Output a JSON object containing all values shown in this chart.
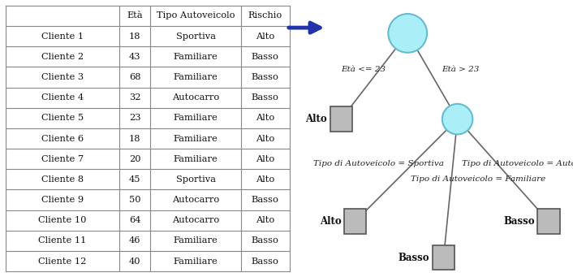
{
  "table_headers": [
    "",
    "Età",
    "Tipo Autoveicolo",
    "Rischio"
  ],
  "table_rows": [
    [
      "Cliente 1",
      "18",
      "Sportiva",
      "Alto"
    ],
    [
      "Cliente 2",
      "43",
      "Familiare",
      "Basso"
    ],
    [
      "Cliente 3",
      "68",
      "Familiare",
      "Basso"
    ],
    [
      "Cliente 4",
      "32",
      "Autocarro",
      "Basso"
    ],
    [
      "Cliente 5",
      "23",
      "Familiare",
      "Alto"
    ],
    [
      "Cliente 6",
      "18",
      "Familiare",
      "Alto"
    ],
    [
      "Cliente 7",
      "20",
      "Familiare",
      "Alto"
    ],
    [
      "Cliente 8",
      "45",
      "Sportiva",
      "Alto"
    ],
    [
      "Cliente 9",
      "50",
      "Autocarro",
      "Basso"
    ],
    [
      "Cliente 10",
      "64",
      "Autocarro",
      "Alto"
    ],
    [
      "Cliente 11",
      "46",
      "Familiare",
      "Basso"
    ],
    [
      "Cliente 12",
      "40",
      "Familiare",
      "Basso"
    ]
  ],
  "node_color": "#aaeef8",
  "node_edge_color": "#66bbcc",
  "leaf_color": "#bbbbbb",
  "leaf_edge_color": "#555555",
  "arrow_color": "#2233aa",
  "line_color": "#666666",
  "bg_color": "#ffffff",
  "label_eta_le": "Età <= 23",
  "label_eta_gt": "Età > 23",
  "label_sportiva": "Tipo di Autoveicolo = Sportiva",
  "label_autocarro": "Tipo di Autoveicolo = Autocarro",
  "label_familiare": "Tipo di Autoveicolo = Familiare",
  "label_alto": "Alto",
  "label_basso": "Basso",
  "font_size_edge": 7.5,
  "font_size_leaf": 8.5
}
